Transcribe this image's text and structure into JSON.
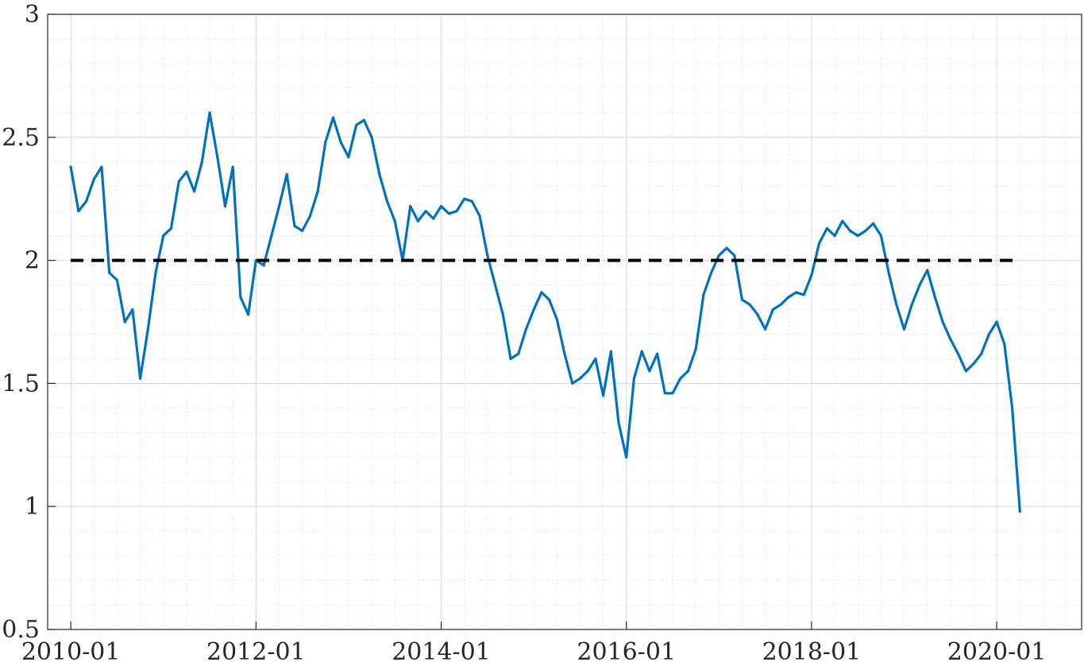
{
  "chart_data": {
    "type": "line",
    "title": "",
    "xlabel": "",
    "ylabel": "",
    "x_ticks": [
      "2010-01",
      "2012-01",
      "2014-01",
      "2016-01",
      "2018-01",
      "2020-01"
    ],
    "y_ticks": [
      "0.5",
      "1",
      "1.5",
      "2",
      "2.5",
      "3"
    ],
    "xlim": [
      "2009-10",
      "2020-12"
    ],
    "ylim": [
      0.5,
      3
    ],
    "grid": true,
    "minor_grid": true,
    "legend": "none",
    "colors": {
      "series": "#0072BD",
      "reference": "#000000",
      "grid": "#d9d9d9"
    },
    "series": [
      {
        "style": "solid",
        "x": [
          "2010-01",
          "2010-02",
          "2010-03",
          "2010-04",
          "2010-05",
          "2010-06",
          "2010-07",
          "2010-08",
          "2010-09",
          "2010-10",
          "2010-11",
          "2010-12",
          "2011-01",
          "2011-02",
          "2011-03",
          "2011-04",
          "2011-05",
          "2011-06",
          "2011-07",
          "2011-08",
          "2011-09",
          "2011-10",
          "2011-11",
          "2011-12",
          "2012-01",
          "2012-02",
          "2012-03",
          "2012-04",
          "2012-05",
          "2012-06",
          "2012-07",
          "2012-08",
          "2012-09",
          "2012-10",
          "2012-11",
          "2012-12",
          "2013-01",
          "2013-02",
          "2013-03",
          "2013-04",
          "2013-05",
          "2013-06",
          "2013-07",
          "2013-08",
          "2013-09",
          "2013-10",
          "2013-11",
          "2013-12",
          "2014-01",
          "2014-02",
          "2014-03",
          "2014-04",
          "2014-05",
          "2014-06",
          "2014-07",
          "2014-08",
          "2014-09",
          "2014-10",
          "2014-11",
          "2014-12",
          "2015-01",
          "2015-02",
          "2015-03",
          "2015-04",
          "2015-05",
          "2015-06",
          "2015-07",
          "2015-08",
          "2015-09",
          "2015-10",
          "2015-11",
          "2015-12",
          "2016-01",
          "2016-02",
          "2016-03",
          "2016-04",
          "2016-05",
          "2016-06",
          "2016-07",
          "2016-08",
          "2016-09",
          "2016-10",
          "2016-11",
          "2016-12",
          "2017-01",
          "2017-02",
          "2017-03",
          "2017-04",
          "2017-05",
          "2017-06",
          "2017-07",
          "2017-08",
          "2017-09",
          "2017-10",
          "2017-11",
          "2017-12",
          "2018-01",
          "2018-02",
          "2018-03",
          "2018-04",
          "2018-05",
          "2018-06",
          "2018-07",
          "2018-08",
          "2018-09",
          "2018-10",
          "2018-11",
          "2018-12",
          "2019-01",
          "2019-02",
          "2019-03",
          "2019-04",
          "2019-05",
          "2019-06",
          "2019-07",
          "2019-08",
          "2019-09",
          "2019-10",
          "2019-11",
          "2019-12",
          "2020-01",
          "2020-02",
          "2020-03",
          "2020-04"
        ],
        "values": [
          2.38,
          2.2,
          2.24,
          2.33,
          2.38,
          1.95,
          1.92,
          1.75,
          1.8,
          1.52,
          1.72,
          1.95,
          2.1,
          2.13,
          2.32,
          2.36,
          2.28,
          2.4,
          2.6,
          2.42,
          2.22,
          2.38,
          1.85,
          1.78,
          2.0,
          1.98,
          2.1,
          2.22,
          2.35,
          2.14,
          2.12,
          2.18,
          2.28,
          2.48,
          2.58,
          2.48,
          2.42,
          2.55,
          2.57,
          2.5,
          2.35,
          2.24,
          2.16,
          2.0,
          2.22,
          2.16,
          2.2,
          2.17,
          2.22,
          2.19,
          2.2,
          2.25,
          2.24,
          2.18,
          2.02,
          1.9,
          1.78,
          1.6,
          1.62,
          1.72,
          1.8,
          1.87,
          1.84,
          1.76,
          1.62,
          1.5,
          1.52,
          1.55,
          1.6,
          1.45,
          1.63,
          1.34,
          1.2,
          1.52,
          1.63,
          1.55,
          1.62,
          1.46,
          1.46,
          1.52,
          1.55,
          1.64,
          1.86,
          1.95,
          2.02,
          2.05,
          2.02,
          1.84,
          1.82,
          1.78,
          1.72,
          1.8,
          1.82,
          1.85,
          1.87,
          1.86,
          1.94,
          2.07,
          2.13,
          2.1,
          2.16,
          2.12,
          2.1,
          2.12,
          2.15,
          2.1,
          1.95,
          1.82,
          1.72,
          1.82,
          1.9,
          1.96,
          1.85,
          1.75,
          1.68,
          1.62,
          1.55,
          1.58,
          1.62,
          1.7,
          1.75,
          1.66,
          1.4,
          0.98
        ]
      },
      {
        "style": "dashed",
        "x": [
          "2010-01",
          "2020-04"
        ],
        "values": [
          2,
          2
        ]
      }
    ]
  }
}
